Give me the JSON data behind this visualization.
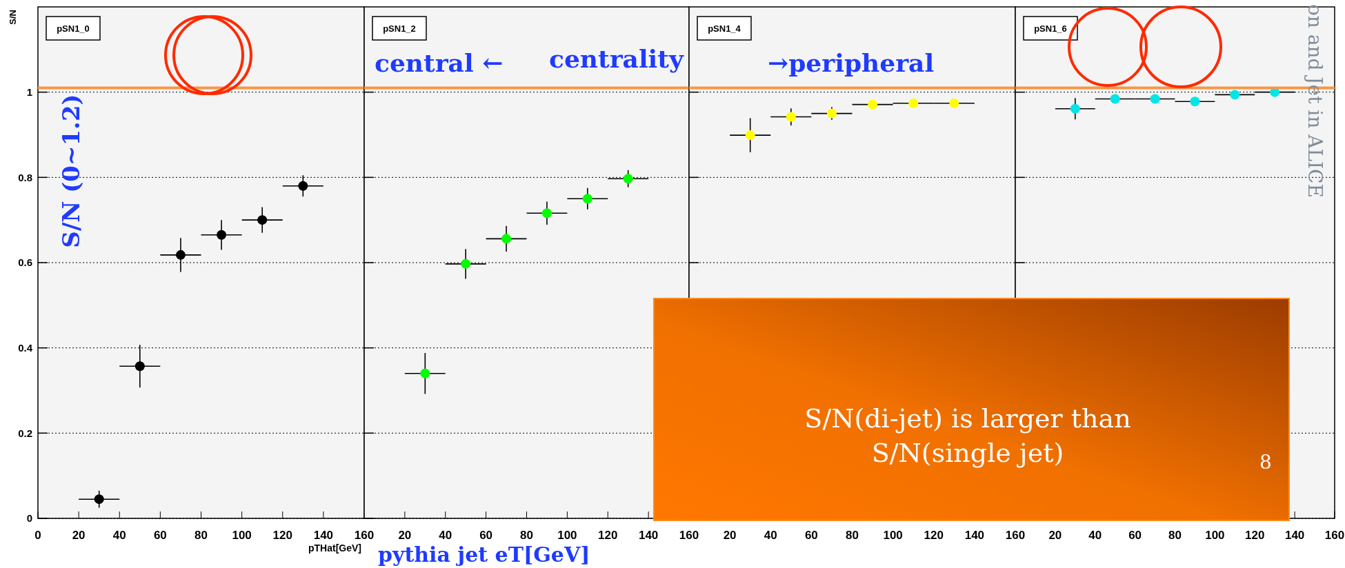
{
  "chart_data": [
    {
      "type": "scatter",
      "title": "pSN1_0",
      "xlabel": "pTHat[GeV]",
      "ylabel": "S/N",
      "x": [
        30,
        50,
        70,
        90,
        110,
        130
      ],
      "series": [
        {
          "color": "#000000",
          "values": [
            0.045,
            0.357,
            0.618,
            0.665,
            0.7,
            0.78
          ],
          "errors": [
            0.02,
            0.05,
            0.04,
            0.035,
            0.03,
            0.025
          ],
          "xerrors": [
            10,
            10,
            10,
            10,
            10,
            10
          ]
        }
      ],
      "xlim": [
        0,
        160
      ],
      "xticks": [
        0,
        20,
        40,
        60,
        80,
        100,
        120,
        140,
        160
      ],
      "ylim": [
        0,
        1.2
      ],
      "yticks": [
        0,
        0.2,
        0.4,
        0.6,
        0.8,
        1
      ],
      "grid": "y",
      "marker": "circle",
      "ref_lines": [
        {
          "axis": "y",
          "value": 1.01,
          "color": "#f79646"
        }
      ],
      "annotations": [
        "central ←",
        "centrality",
        "→peripheral",
        "S/N (0~1.2)",
        "pythia jet eT[GeV]",
        "S/N(di-jet) is larger than\nS/N(single jet)",
        "8",
        "on and Jet in ALICE"
      ]
    },
    {
      "type": "scatter",
      "title": "pSN1_2",
      "x": [
        30,
        50,
        70,
        90,
        110,
        130
      ],
      "series": [
        {
          "color": "#00ff00",
          "values": [
            0.34,
            0.597,
            0.656,
            0.716,
            0.75,
            0.797
          ],
          "errors": [
            0.048,
            0.035,
            0.03,
            0.027,
            0.025,
            0.02
          ],
          "xerrors": [
            10,
            10,
            10,
            10,
            10,
            10
          ]
        }
      ],
      "xlim": [
        0,
        160
      ],
      "xticks": [
        20,
        40,
        60,
        80,
        100,
        120,
        140,
        160
      ],
      "ylim": [
        0,
        1.2
      ],
      "yticks": [
        0,
        0.2,
        0.4,
        0.6,
        0.8,
        1
      ],
      "grid": "y",
      "marker": "circle",
      "tick_labels": "x",
      "ref_lines": [
        {
          "axis": "y",
          "value": 1.01,
          "color": "#f79646"
        }
      ]
    },
    {
      "type": "scatter",
      "title": "pSN1_4",
      "x": [
        30,
        50,
        70,
        90,
        110,
        130
      ],
      "series": [
        {
          "color": "#ffff00",
          "values": [
            0.899,
            0.942,
            0.95,
            0.971,
            0.974,
            0.974
          ],
          "errors": [
            0.04,
            0.02,
            0.015,
            null,
            null,
            null
          ],
          "xerrors": [
            10,
            10,
            10,
            10,
            10,
            10
          ]
        }
      ],
      "xlim": [
        0,
        160
      ],
      "xticks": [
        20,
        40,
        60,
        80,
        100,
        120,
        140,
        160
      ],
      "ylim": [
        0,
        1.2
      ],
      "yticks": [
        0,
        0.2,
        0.4,
        0.6,
        0.8,
        1
      ],
      "grid": "y",
      "marker": "circle",
      "tick_labels": "x",
      "ref_lines": [
        {
          "axis": "y",
          "value": 1.01,
          "color": "#f79646"
        }
      ]
    },
    {
      "type": "scatter",
      "title": "pSN1_6",
      "x": [
        30,
        50,
        70,
        90,
        110,
        130
      ],
      "series": [
        {
          "color": "#00e5e5",
          "values": [
            0.961,
            0.984,
            0.984,
            0.978,
            0.994,
            1.0
          ],
          "errors": [
            0.025,
            null,
            null,
            null,
            null,
            null
          ],
          "xerrors": [
            10,
            10,
            10,
            10,
            10,
            10
          ]
        }
      ],
      "xlim": [
        0,
        160
      ],
      "xticks": [
        20,
        40,
        60,
        80,
        100,
        120,
        140,
        160
      ],
      "ylim": [
        0,
        1.2
      ],
      "yticks": [
        0,
        0.2,
        0.4,
        0.6,
        0.8,
        1
      ],
      "grid": "y",
      "marker": "circle",
      "tick_labels": "x",
      "ref_lines": [
        {
          "axis": "y",
          "value": 1.01,
          "color": "#f79646"
        }
      ]
    }
  ]
}
